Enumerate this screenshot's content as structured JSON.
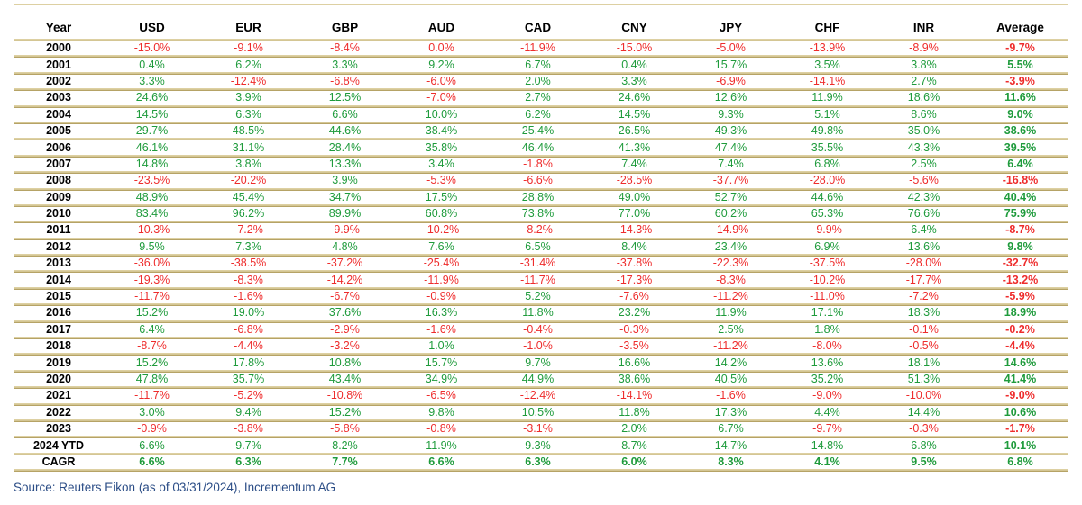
{
  "chart_data": {
    "type": "table",
    "columns": [
      "Year",
      "USD",
      "EUR",
      "GBP",
      "AUD",
      "CAD",
      "CNY",
      "JPY",
      "CHF",
      "INR",
      "Average"
    ],
    "rows": [
      {
        "year": "2000",
        "values": [
          "-15.0%",
          "-9.1%",
          "-8.4%",
          "0.0%",
          "-11.9%",
          "-15.0%",
          "-5.0%",
          "-13.9%",
          "-8.9%",
          "-9.7%"
        ]
      },
      {
        "year": "2001",
        "values": [
          "0.4%",
          "6.2%",
          "3.3%",
          "9.2%",
          "6.7%",
          "0.4%",
          "15.7%",
          "3.5%",
          "3.8%",
          "5.5%"
        ]
      },
      {
        "year": "2002",
        "values": [
          "3.3%",
          "-12.4%",
          "-6.8%",
          "-6.0%",
          "2.0%",
          "3.3%",
          "-6.9%",
          "-14.1%",
          "2.7%",
          "-3.9%"
        ]
      },
      {
        "year": "2003",
        "values": [
          "24.6%",
          "3.9%",
          "12.5%",
          "-7.0%",
          "2.7%",
          "24.6%",
          "12.6%",
          "11.9%",
          "18.6%",
          "11.6%"
        ]
      },
      {
        "year": "2004",
        "values": [
          "14.5%",
          "6.3%",
          "6.6%",
          "10.0%",
          "6.2%",
          "14.5%",
          "9.3%",
          "5.1%",
          "8.6%",
          "9.0%"
        ]
      },
      {
        "year": "2005",
        "values": [
          "29.7%",
          "48.5%",
          "44.6%",
          "38.4%",
          "25.4%",
          "26.5%",
          "49.3%",
          "49.8%",
          "35.0%",
          "38.6%"
        ]
      },
      {
        "year": "2006",
        "values": [
          "46.1%",
          "31.1%",
          "28.4%",
          "35.8%",
          "46.4%",
          "41.3%",
          "47.4%",
          "35.5%",
          "43.3%",
          "39.5%"
        ]
      },
      {
        "year": "2007",
        "values": [
          "14.8%",
          "3.8%",
          "13.3%",
          "3.4%",
          "-1.8%",
          "7.4%",
          "7.4%",
          "6.8%",
          "2.5%",
          "6.4%"
        ]
      },
      {
        "year": "2008",
        "values": [
          "-23.5%",
          "-20.2%",
          "3.9%",
          "-5.3%",
          "-6.6%",
          "-28.5%",
          "-37.7%",
          "-28.0%",
          "-5.6%",
          "-16.8%"
        ]
      },
      {
        "year": "2009",
        "values": [
          "48.9%",
          "45.4%",
          "34.7%",
          "17.5%",
          "28.8%",
          "49.0%",
          "52.7%",
          "44.6%",
          "42.3%",
          "40.4%"
        ]
      },
      {
        "year": "2010",
        "values": [
          "83.4%",
          "96.2%",
          "89.9%",
          "60.8%",
          "73.8%",
          "77.0%",
          "60.2%",
          "65.3%",
          "76.6%",
          "75.9%"
        ]
      },
      {
        "year": "2011",
        "values": [
          "-10.3%",
          "-7.2%",
          "-9.9%",
          "-10.2%",
          "-8.2%",
          "-14.3%",
          "-14.9%",
          "-9.9%",
          "6.4%",
          "-8.7%"
        ]
      },
      {
        "year": "2012",
        "values": [
          "9.5%",
          "7.3%",
          "4.8%",
          "7.6%",
          "6.5%",
          "8.4%",
          "23.4%",
          "6.9%",
          "13.6%",
          "9.8%"
        ]
      },
      {
        "year": "2013",
        "values": [
          "-36.0%",
          "-38.5%",
          "-37.2%",
          "-25.4%",
          "-31.4%",
          "-37.8%",
          "-22.3%",
          "-37.5%",
          "-28.0%",
          "-32.7%"
        ]
      },
      {
        "year": "2014",
        "values": [
          "-19.3%",
          "-8.3%",
          "-14.2%",
          "-11.9%",
          "-11.7%",
          "-17.3%",
          "-8.3%",
          "-10.2%",
          "-17.7%",
          "-13.2%"
        ]
      },
      {
        "year": "2015",
        "values": [
          "-11.7%",
          "-1.6%",
          "-6.7%",
          "-0.9%",
          "5.2%",
          "-7.6%",
          "-11.2%",
          "-11.0%",
          "-7.2%",
          "-5.9%"
        ]
      },
      {
        "year": "2016",
        "values": [
          "15.2%",
          "19.0%",
          "37.6%",
          "16.3%",
          "11.8%",
          "23.2%",
          "11.9%",
          "17.1%",
          "18.3%",
          "18.9%"
        ]
      },
      {
        "year": "2017",
        "values": [
          "6.4%",
          "-6.8%",
          "-2.9%",
          "-1.6%",
          "-0.4%",
          "-0.3%",
          "2.5%",
          "1.8%",
          "-0.1%",
          "-0.2%"
        ]
      },
      {
        "year": "2018",
        "values": [
          "-8.7%",
          "-4.4%",
          "-3.2%",
          "1.0%",
          "-1.0%",
          "-3.5%",
          "-11.2%",
          "-8.0%",
          "-0.5%",
          "-4.4%"
        ]
      },
      {
        "year": "2019",
        "values": [
          "15.2%",
          "17.8%",
          "10.8%",
          "15.7%",
          "9.7%",
          "16.6%",
          "14.2%",
          "13.6%",
          "18.1%",
          "14.6%"
        ]
      },
      {
        "year": "2020",
        "values": [
          "47.8%",
          "35.7%",
          "43.4%",
          "34.9%",
          "44.9%",
          "38.6%",
          "40.5%",
          "35.2%",
          "51.3%",
          "41.4%"
        ]
      },
      {
        "year": "2021",
        "values": [
          "-11.7%",
          "-5.2%",
          "-10.8%",
          "-6.5%",
          "-12.4%",
          "-14.1%",
          "-1.6%",
          "-9.0%",
          "-10.0%",
          "-9.0%"
        ]
      },
      {
        "year": "2022",
        "values": [
          "3.0%",
          "9.4%",
          "15.2%",
          "9.8%",
          "10.5%",
          "11.8%",
          "17.3%",
          "4.4%",
          "14.4%",
          "10.6%"
        ]
      },
      {
        "year": "2023",
        "values": [
          "-0.9%",
          "-3.8%",
          "-5.8%",
          "-0.8%",
          "-3.1%",
          "2.0%",
          "6.7%",
          "-9.7%",
          "-0.3%",
          "-1.7%"
        ]
      },
      {
        "year": "2024 YTD",
        "values": [
          "6.6%",
          "9.7%",
          "8.2%",
          "11.9%",
          "9.3%",
          "8.7%",
          "14.7%",
          "14.8%",
          "6.8%",
          "10.1%"
        ]
      },
      {
        "year": "CAGR",
        "values": [
          "6.6%",
          "6.3%",
          "7.7%",
          "6.6%",
          "6.3%",
          "6.0%",
          "8.3%",
          "4.1%",
          "9.5%",
          "6.8%"
        ],
        "bold": true
      }
    ],
    "value_color_rule": "negative or zero values red, positive values green; Average column and CAGR row bold"
  },
  "footer": {
    "source": "Source: Reuters Eikon (as of 03/31/2024), Incrementum AG"
  },
  "colors": {
    "positive": "#1f9b3c",
    "negative": "#ee2c2c",
    "rule_light": "#ddd0a2",
    "rule_dark": "#a6914f",
    "footer_text": "#2b4d86"
  }
}
